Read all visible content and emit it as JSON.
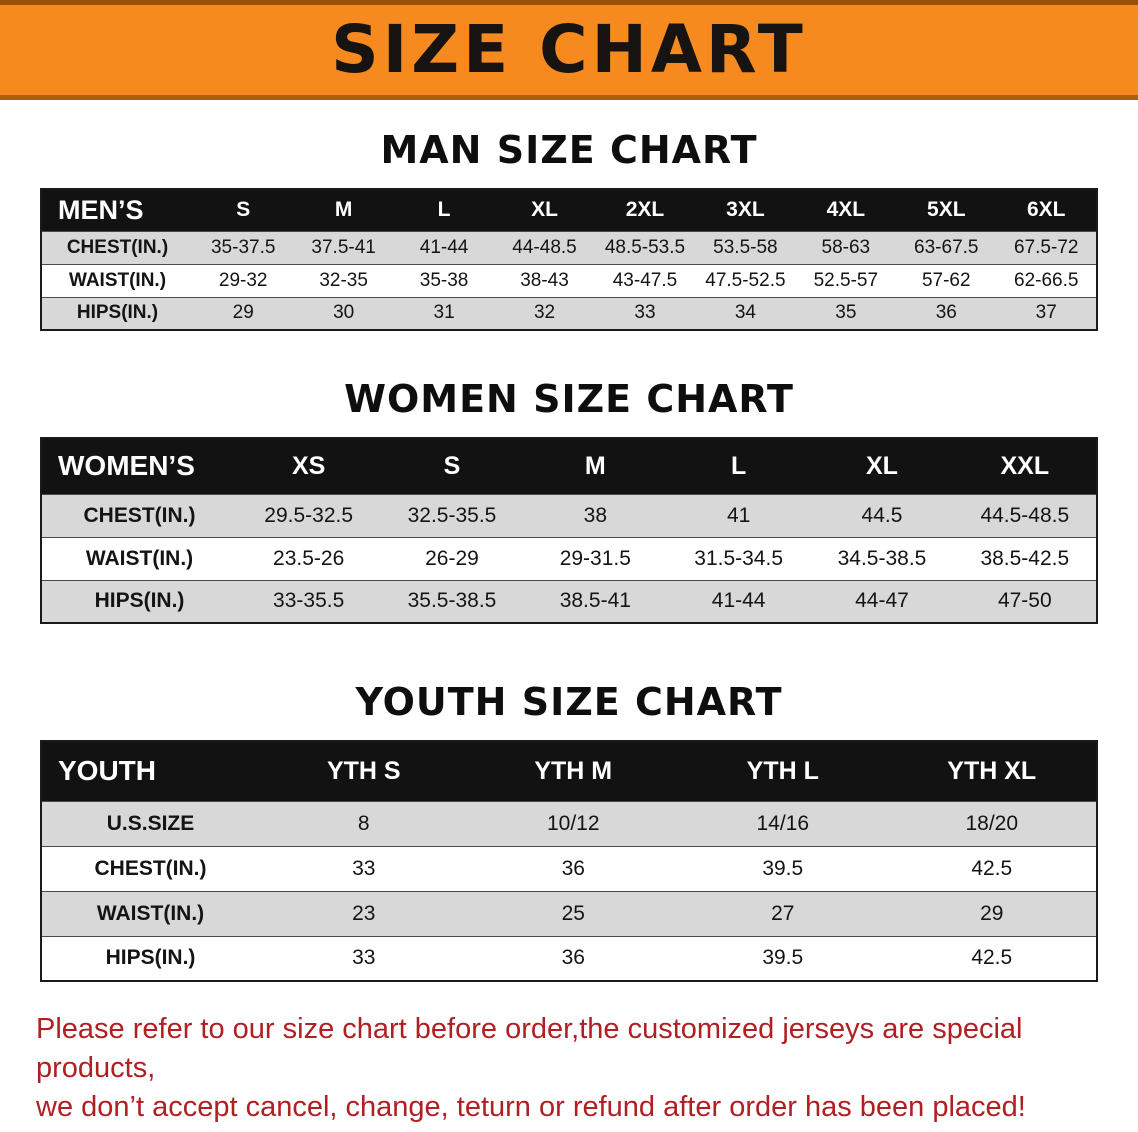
{
  "banner": {
    "title": "SIZE CHART",
    "bg_color": "#f68a1f",
    "text_color": "#171310"
  },
  "sections": [
    {
      "heading": "MAN SIZE CHART",
      "header": [
        "MEN’S",
        "S",
        "M",
        "L",
        "XL",
        "2XL",
        "3XL",
        "4XL",
        "5XL",
        "6XL"
      ],
      "rows": [
        [
          "CHEST(IN.)",
          "35-37.5",
          "37.5-41",
          "41-44",
          "44-48.5",
          "48.5-53.5",
          "53.5-58",
          "58-63",
          "63-67.5",
          "67.5-72"
        ],
        [
          "WAIST(IN.)",
          "29-32",
          "32-35",
          "35-38",
          "38-43",
          "43-47.5",
          "47.5-52.5",
          "52.5-57",
          "57-62",
          "62-66.5"
        ],
        [
          "HIPS(IN.)",
          "29",
          "30",
          "31",
          "32",
          "33",
          "34",
          "35",
          "36",
          "37"
        ]
      ]
    },
    {
      "heading": "WOMEN SIZE CHART",
      "header": [
        "WOMEN’S",
        "XS",
        "S",
        "M",
        "L",
        "XL",
        "XXL"
      ],
      "rows": [
        [
          "CHEST(IN.)",
          "29.5-32.5",
          "32.5-35.5",
          "38",
          "41",
          "44.5",
          "44.5-48.5"
        ],
        [
          "WAIST(IN.)",
          "23.5-26",
          "26-29",
          "29-31.5",
          "31.5-34.5",
          "34.5-38.5",
          "38.5-42.5"
        ],
        [
          "HIPS(IN.)",
          "33-35.5",
          "35.5-38.5",
          "38.5-41",
          "41-44",
          "44-47",
          "47-50"
        ]
      ]
    },
    {
      "heading": "YOUTH SIZE CHART",
      "header": [
        "YOUTH",
        "YTH S",
        "YTH M",
        "YTH L",
        "YTH XL"
      ],
      "rows": [
        [
          "U.S.SIZE",
          "8",
          "10/12",
          "14/16",
          "18/20"
        ],
        [
          "CHEST(IN.)",
          "33",
          "36",
          "39.5",
          "42.5"
        ],
        [
          "WAIST(IN.)",
          "23",
          "25",
          "27",
          "29"
        ],
        [
          "HIPS(IN.)",
          "33",
          "36",
          "39.5",
          "42.5"
        ]
      ]
    }
  ],
  "footer": {
    "line1": "Please refer to our size chart before order,the customized jerseys are special products,",
    "line2": "we don’t accept cancel, change, teturn or refund after order has been placed!"
  },
  "colors": {
    "banner_orange": "#f68a1f",
    "header_black": "#121212",
    "row_gray": "#d8d8d8",
    "notice_red": "#b02023"
  }
}
